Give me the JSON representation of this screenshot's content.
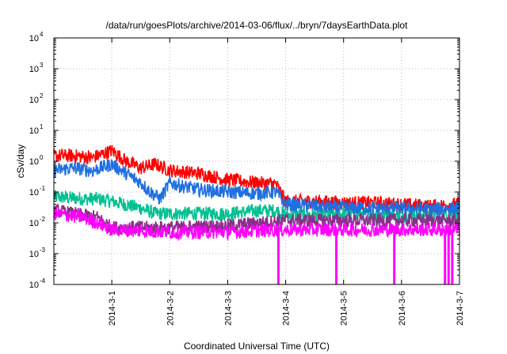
{
  "chart_data": {
    "type": "line",
    "title": "/data/run/goesPlots/archive/2014-03-06/flux/../bryn/7daysEarthData.plot",
    "xlabel": "Coordinated Universal Time (UTC)",
    "ylabel": "cSv/day",
    "yscale": "log",
    "ylim": [
      0.0001,
      10000
    ],
    "y_ticks": [
      {
        "base": "10",
        "exp": "-4"
      },
      {
        "base": "10",
        "exp": "-3"
      },
      {
        "base": "10",
        "exp": "-2"
      },
      {
        "base": "10",
        "exp": "-1"
      },
      {
        "base": "10",
        "exp": "0"
      },
      {
        "base": "10",
        "exp": "1"
      },
      {
        "base": "10",
        "exp": "2"
      },
      {
        "base": "10",
        "exp": "3"
      },
      {
        "base": "10",
        "exp": "4"
      }
    ],
    "xlim": [
      "2014-02-28 00:00",
      "2014-03-07 00:00"
    ],
    "x_ticks": [
      "2014-3-1",
      "2014-3-2",
      "2014-3-3",
      "2014-3-4",
      "2014-3-5",
      "2014-3-6",
      "2014-3-7"
    ],
    "grid": true,
    "legend": "none",
    "series": [
      {
        "color": "#00c090",
        "x": [
          "2014-02-28 00:00",
          "2014-02-28 12:00",
          "2014-02-28 18:00",
          "2014-03-01 00:00",
          "2014-03-01 12:00",
          "2014-03-01 18:00",
          "2014-03-02 00:00",
          "2014-03-02 12:00",
          "2014-03-03 00:00",
          "2014-03-03 12:00",
          "2014-03-03 20:00",
          "2014-03-04 00:00",
          "2014-03-04 12:00",
          "2014-03-05 00:00",
          "2014-03-05 12:00",
          "2014-03-06 00:00",
          "2014-03-06 12:00",
          "2014-03-07 00:00"
        ],
        "y": [
          0.07,
          0.06,
          0.06,
          0.05,
          0.03,
          0.02,
          0.02,
          0.02,
          0.02,
          0.025,
          0.025,
          0.018,
          0.018,
          0.02,
          0.02,
          0.018,
          0.02,
          0.02
        ]
      },
      {
        "color": "#ff0000",
        "x": [
          "2014-02-28 00:00",
          "2014-02-28 08:00",
          "2014-02-28 16:00",
          "2014-03-01 00:00",
          "2014-03-01 06:00",
          "2014-03-01 12:00",
          "2014-03-01 18:00",
          "2014-03-02 00:00",
          "2014-03-02 06:00",
          "2014-03-02 12:00",
          "2014-03-03 00:00",
          "2014-03-03 12:00",
          "2014-03-03 20:00",
          "2014-03-04 00:00",
          "2014-03-04 12:00",
          "2014-03-05 00:00",
          "2014-03-05 12:00",
          "2014-03-06 00:00",
          "2014-03-06 12:00",
          "2014-03-07 00:00"
        ],
        "y": [
          1.5,
          1.5,
          1.3,
          2.2,
          1.0,
          0.6,
          0.8,
          0.5,
          0.45,
          0.4,
          0.25,
          0.2,
          0.18,
          0.05,
          0.05,
          0.045,
          0.045,
          0.04,
          0.035,
          0.04
        ]
      },
      {
        "color": "#1f6fe0",
        "x": [
          "2014-02-28 00:00",
          "2014-02-28 08:00",
          "2014-02-28 16:00",
          "2014-03-01 00:00",
          "2014-03-01 06:00",
          "2014-03-01 12:00",
          "2014-03-01 16:00",
          "2014-03-01 20:00",
          "2014-03-02 00:00",
          "2014-03-02 06:00",
          "2014-03-02 12:00",
          "2014-03-03 00:00",
          "2014-03-03 12:00",
          "2014-03-03 20:00",
          "2014-03-04 00:00",
          "2014-03-04 12:00",
          "2014-03-05 00:00",
          "2014-03-05 12:00",
          "2014-03-06 00:00",
          "2014-03-06 12:00",
          "2014-03-07 00:00"
        ],
        "y": [
          0.5,
          0.6,
          0.5,
          0.8,
          0.4,
          0.2,
          0.1,
          0.06,
          0.2,
          0.15,
          0.12,
          0.1,
          0.09,
          0.1,
          0.04,
          0.035,
          0.03,
          0.03,
          0.03,
          0.028,
          0.03
        ]
      },
      {
        "color": "#8a2f8a",
        "x": [
          "2014-02-28 00:00",
          "2014-02-28 18:00",
          "2014-03-01 00:00",
          "2014-03-02 00:00",
          "2014-03-03 00:00",
          "2014-03-04 00:00",
          "2014-03-05 00:00",
          "2014-03-06 00:00",
          "2014-03-07 00:00"
        ],
        "y": [
          0.025,
          0.015,
          0.007,
          0.007,
          0.008,
          0.012,
          0.012,
          0.012,
          0.012
        ]
      },
      {
        "color": "#ff00ff",
        "x": [
          "2014-02-28 00:00",
          "2014-02-28 12:00",
          "2014-02-28 18:00",
          "2014-03-01 00:00",
          "2014-03-02 00:00",
          "2014-03-03 00:00",
          "2014-03-04 00:00",
          "2014-03-05 00:00",
          "2014-03-06 00:00",
          "2014-03-07 00:00"
        ],
        "y": [
          0.02,
          0.015,
          0.01,
          0.006,
          0.005,
          0.005,
          0.006,
          0.006,
          0.006,
          0.006
        ],
        "drops": [
          "2014-03-03 21:00",
          "2014-03-04 21:00",
          "2014-03-05 21:00",
          "2014-03-06 18:00",
          "2014-03-06 19:30",
          "2014-03-06 21:00"
        ]
      }
    ]
  }
}
